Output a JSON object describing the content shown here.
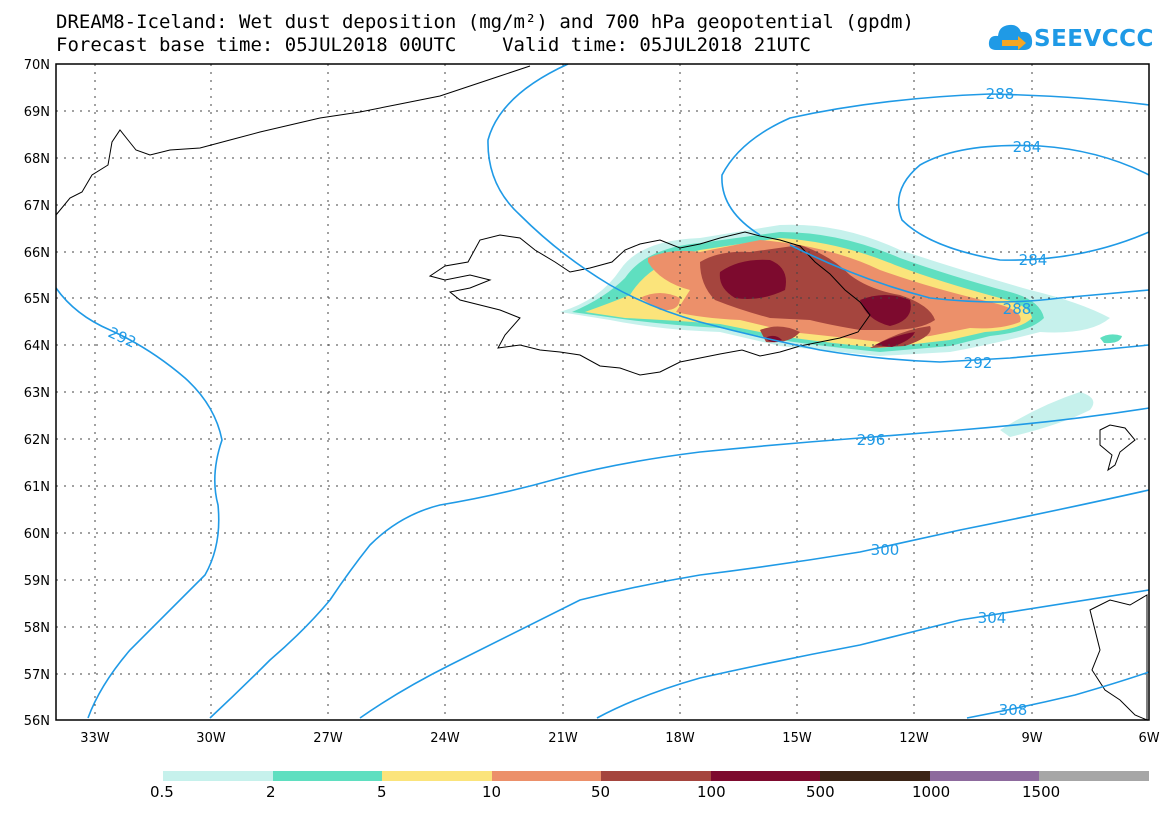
{
  "title_line1": "DREAM8-Iceland: Wet dust deposition (mg/m²) and 700 hPa geopotential (gpdm)",
  "title_line2": "Forecast base time: 05JUL2018 00UTC    Valid time: 05JUL2018 21UTC",
  "logo_text": "SEEVCCC",
  "lat_labels": [
    "70N",
    "69N",
    "68N",
    "67N",
    "66N",
    "65N",
    "64N",
    "63N",
    "62N",
    "61N",
    "60N",
    "59N",
    "58N",
    "57N",
    "56N"
  ],
  "lon_labels": [
    "33W",
    "30W",
    "27W",
    "24W",
    "21W",
    "18W",
    "15W",
    "12W",
    "9W",
    "6W"
  ],
  "contour_labels": [
    "288",
    "284",
    "284",
    "288",
    "292",
    "292",
    "296",
    "300",
    "304",
    "308"
  ],
  "legend": {
    "colors": [
      "#c6f1ec",
      "#5fdfc0",
      "#fbe47b",
      "#ec906a",
      "#a5453e",
      "#7d0a2e",
      "#3b2416",
      "#8d6a9d",
      "#a6a6a6"
    ],
    "labels": [
      "0.5",
      "2",
      "5",
      "10",
      "50",
      "100",
      "500",
      "1000",
      "1500"
    ]
  }
}
